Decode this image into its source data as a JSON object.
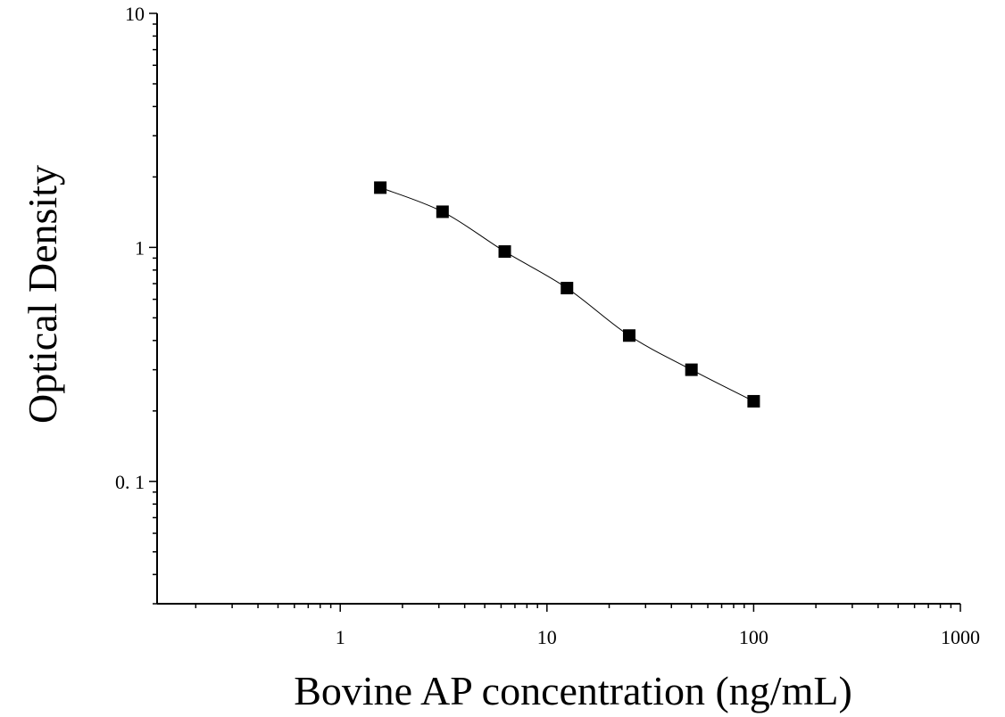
{
  "chart_data": {
    "type": "scatter",
    "title": "",
    "xlabel": "Bovine AP concentration (ng/mL)",
    "ylabel": "Optical Density",
    "x_scale": "log",
    "y_scale": "log",
    "xlim": [
      0.13,
      1000
    ],
    "ylim": [
      0.03,
      10
    ],
    "x_ticks": [
      1,
      10,
      100,
      1000
    ],
    "x_tick_labels": [
      "1",
      "10",
      "100",
      "1000"
    ],
    "y_ticks": [
      0.1,
      1,
      10
    ],
    "y_tick_labels": [
      "0. 1",
      "1",
      "10"
    ],
    "grid": false,
    "legend": "none",
    "series": [
      {
        "marker": "square",
        "color": "#000000",
        "x": [
          1.5625,
          3.125,
          6.25,
          12.5,
          25,
          50,
          100
        ],
        "y": [
          1.8,
          1.42,
          0.96,
          0.67,
          0.42,
          0.3,
          0.22
        ],
        "fit_curve": true
      }
    ]
  }
}
